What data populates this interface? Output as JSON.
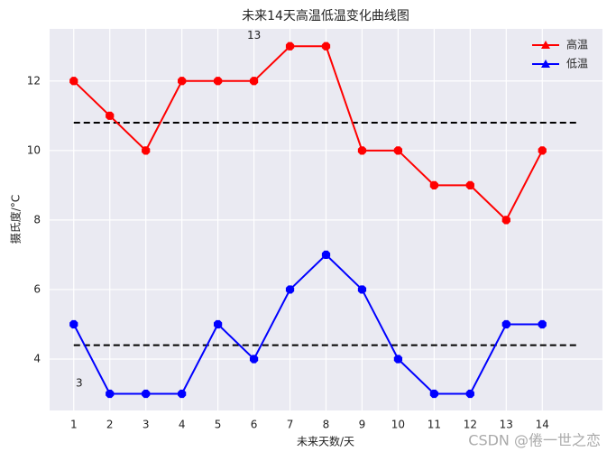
{
  "chart_data": {
    "type": "line",
    "title": "未来14天高温低温变化曲线图",
    "xlabel": "未来天数/天",
    "ylabel": "摄氏度/°C",
    "x": [
      1,
      2,
      3,
      4,
      5,
      6,
      7,
      8,
      9,
      10,
      11,
      12,
      13,
      14
    ],
    "series": [
      {
        "name": "高温",
        "color": "#ff0000",
        "values": [
          12,
          11,
          10,
          12,
          12,
          12,
          13,
          13,
          10,
          10,
          9,
          9,
          8,
          10
        ]
      },
      {
        "name": "低温",
        "color": "#0000ff",
        "values": [
          5,
          3,
          3,
          3,
          5,
          4,
          6,
          7,
          6,
          4,
          3,
          3,
          5,
          5
        ]
      }
    ],
    "mean_lines": {
      "color": "#000000",
      "x": [
        1,
        15
      ],
      "values": [
        10.8,
        4.4
      ]
    },
    "annotations": [
      {
        "text": "13",
        "x": 6,
        "y": 13.3
      },
      {
        "text": "3",
        "x": 1.15,
        "y": 3.3
      }
    ],
    "xlim": [
      0.33,
      15.67
    ],
    "ylim": [
      2.52,
      13.5
    ],
    "xticks": [
      1,
      2,
      3,
      4,
      5,
      6,
      7,
      8,
      9,
      10,
      11,
      12,
      13,
      14
    ],
    "yticks": [
      4,
      6,
      8,
      10,
      12
    ],
    "grid": true,
    "legend": "upper right",
    "watermark": "CSDN @倦一世之恋"
  }
}
